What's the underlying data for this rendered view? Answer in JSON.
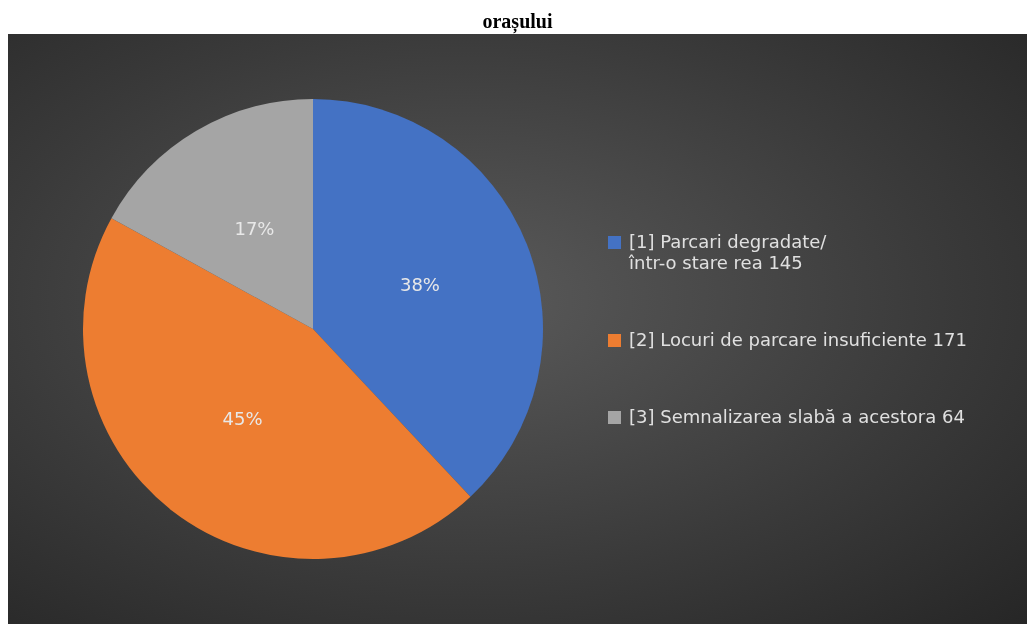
{
  "chart_data": {
    "type": "pie",
    "title": "orașului",
    "categories": [
      "[1] Parcari degradate/ într-o stare rea 145",
      "[2] Locuri de parcare insuficiente 171",
      "[3] Semnalizarea slabă a acestora 64"
    ],
    "values": [
      38,
      45,
      17
    ],
    "colors": [
      "#4472c4",
      "#ed7d31",
      "#a5a5a5"
    ],
    "value_labels": [
      "38%",
      "45%",
      "17%"
    ],
    "legend": "right"
  }
}
